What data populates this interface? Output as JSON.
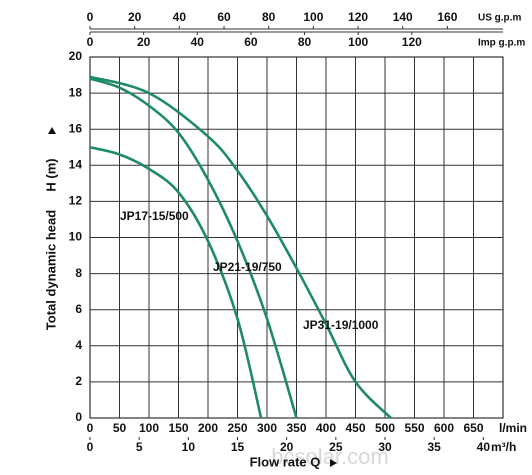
{
  "chart_data": {
    "type": "line",
    "y_label": "Total dynamic head",
    "y_unit": "H (m)",
    "x_label": "Flow rate  Q",
    "watermark": "bcsolar.com",
    "grid": true,
    "xlim": [
      0,
      700
    ],
    "xticks": [
      0,
      50,
      100,
      150,
      200,
      250,
      300,
      350,
      400,
      450,
      500,
      550,
      600,
      650
    ],
    "x_unit": "l/min",
    "x2lim": [
      0,
      42
    ],
    "x2ticks": [
      0,
      5,
      10,
      15,
      20,
      25,
      30,
      35,
      40
    ],
    "x2_unit": "m³/h",
    "top_axes": [
      {
        "unit": "US g.p.m",
        "lim": [
          0,
          184.9
        ],
        "ticks": [
          0,
          20,
          40,
          60,
          80,
          100,
          120,
          140,
          160
        ]
      },
      {
        "unit": "Imp g.p.m",
        "lim": [
          0,
          154
        ],
        "ticks": [
          0,
          20,
          40,
          60,
          80,
          100,
          120
        ]
      }
    ],
    "ylim": [
      0,
      20
    ],
    "yticks": [
      0,
      2,
      4,
      6,
      8,
      10,
      12,
      14,
      16,
      18,
      20
    ],
    "series": [
      {
        "name": "JP17-15/500",
        "color": "#1e8a68",
        "x": [
          0,
          50,
          100,
          150,
          200,
          250,
          290
        ],
        "values": [
          15,
          14.6,
          13.8,
          12.5,
          9.8,
          5.5,
          0
        ]
      },
      {
        "name": "JP21-19/750",
        "color": "#1e8a68",
        "x": [
          0,
          50,
          100,
          150,
          200,
          250,
          300,
          350
        ],
        "values": [
          18.8,
          18.3,
          17.3,
          15.8,
          13.2,
          9.8,
          5.5,
          0
        ]
      },
      {
        "name": "JP31-19/1000",
        "color": "#1e8a68",
        "x": [
          0,
          100,
          200,
          250,
          300,
          350,
          400,
          450,
          510
        ],
        "values": [
          18.9,
          18,
          15.6,
          13.7,
          11.2,
          8.3,
          5.2,
          2,
          0
        ]
      }
    ]
  }
}
